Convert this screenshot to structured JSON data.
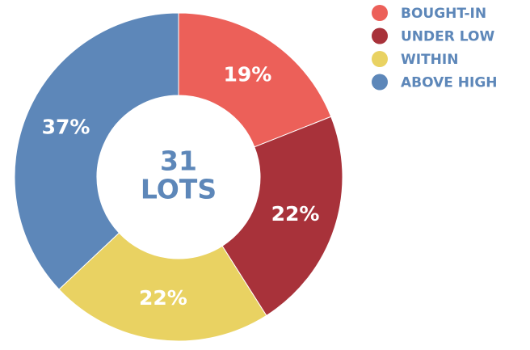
{
  "chart_data": {
    "type": "donut",
    "categories": [
      "BOUGHT-IN",
      "UNDER LOW",
      "WITHIN",
      "ABOVE HIGH"
    ],
    "values": [
      19,
      22,
      22,
      37
    ],
    "value_labels": [
      "19%",
      "22%",
      "22%",
      "37%"
    ],
    "colors": [
      "#ec6059",
      "#a8323a",
      "#e9d262",
      "#5d87b9"
    ],
    "center_value": 31,
    "center_text": "LOTS",
    "legend": "top-right"
  }
}
